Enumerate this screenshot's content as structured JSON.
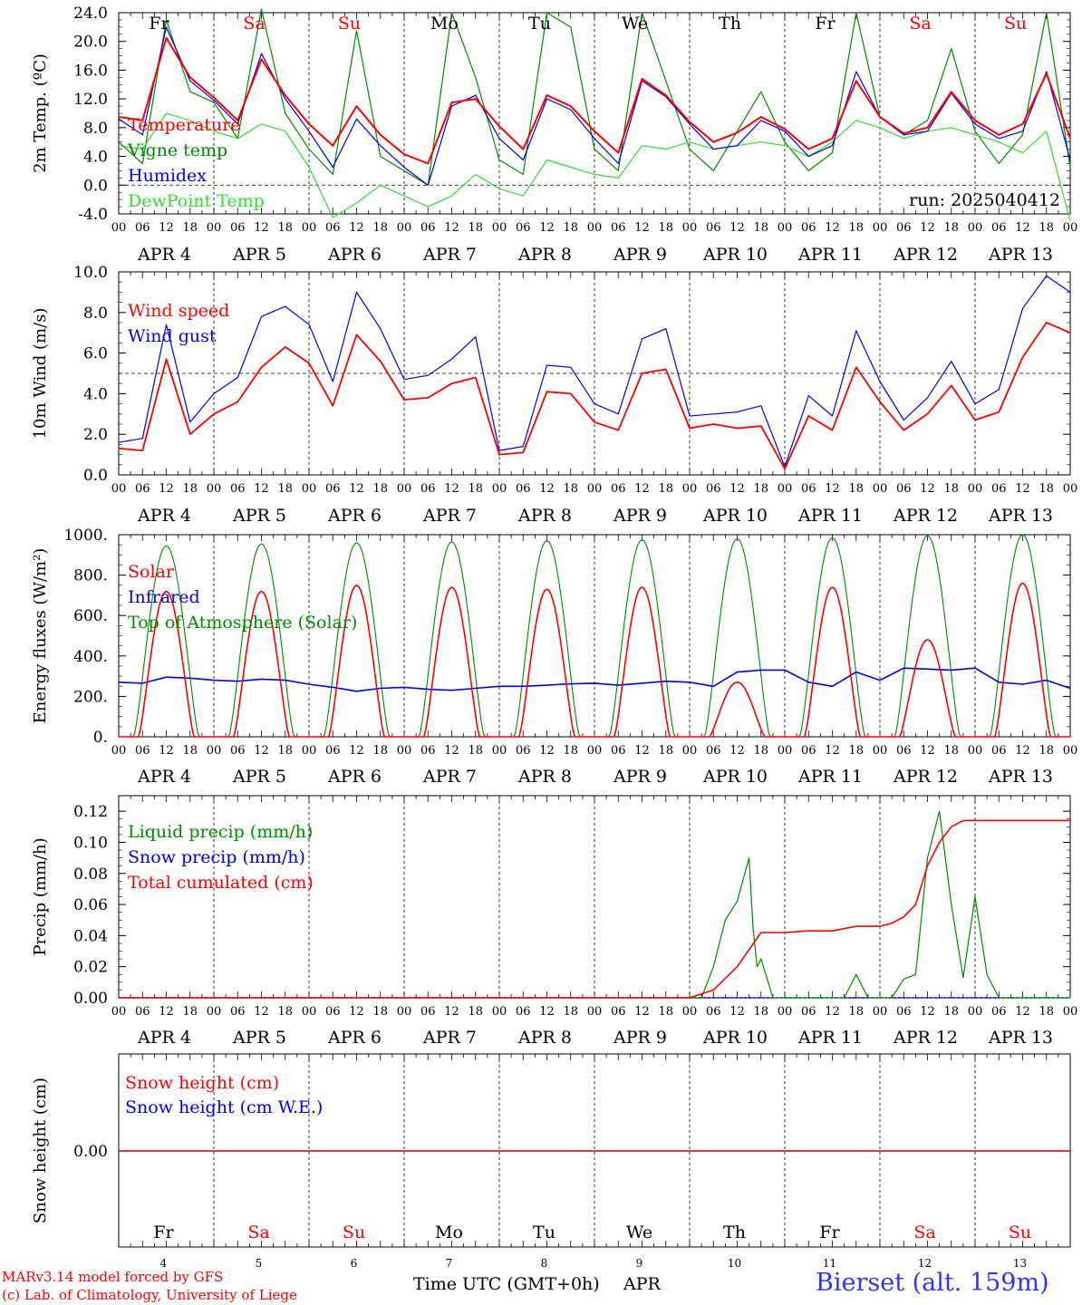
{
  "colors": {
    "red": "#ff0000",
    "green": "#008a00",
    "lightgreen": "#33dd33",
    "blue": "#0000ee",
    "station": "#3333ff",
    "weekday": "#000000",
    "weekend": "#ff0000"
  },
  "days": [
    {
      "date": "4",
      "weekday": "Fr",
      "weekend": false
    },
    {
      "date": "5",
      "weekday": "Sa",
      "weekend": true
    },
    {
      "date": "6",
      "weekday": "Su",
      "weekend": true
    },
    {
      "date": "7",
      "weekday": "Mo",
      "weekend": false
    },
    {
      "date": "8",
      "weekday": "Tu",
      "weekend": false
    },
    {
      "date": "9",
      "weekday": "We",
      "weekend": false
    },
    {
      "date": "10",
      "weekday": "Th",
      "weekend": false
    },
    {
      "date": "11",
      "weekday": "Fr",
      "weekend": false
    },
    {
      "date": "12",
      "weekday": "Sa",
      "weekend": true
    },
    {
      "date": "13",
      "weekday": "Su",
      "weekend": true
    }
  ],
  "month": "APR",
  "hour_labels": [
    "00",
    "06",
    "12",
    "18"
  ],
  "end_hour_label": "00",
  "footer": {
    "model": "MARv3.14 model forced by GFS",
    "credit": "(c) Lab. of Climatology, University of Liege",
    "time_label": "Time UTC (GMT+0h)",
    "month_label": "APR",
    "station": "Bierset (alt. 159m)"
  },
  "chart_data": [
    {
      "type": "line",
      "id": "temp",
      "ylabel": "2m Temp. (ºC)",
      "ylim": [
        -4.0,
        24.0
      ],
      "yticks": [
        "-4.0",
        "0.0",
        "4.0",
        "8.0",
        "12.0",
        "16.0",
        "20.0",
        "24.0"
      ],
      "ref_line": 0,
      "annotation": "run: 2025040412",
      "x_hours": [
        0,
        6,
        12,
        18,
        24,
        30,
        36,
        42,
        48,
        54,
        60,
        66,
        72,
        78,
        84,
        90,
        96,
        102,
        108,
        114,
        120,
        126,
        132,
        138,
        144,
        150,
        156,
        162,
        168,
        174,
        180,
        186,
        192,
        198,
        204,
        210,
        216,
        222,
        228,
        234,
        240
      ],
      "series": [
        {
          "name": "Temperature",
          "color": "#ff0000",
          "values": [
            9.5,
            9.0,
            20.5,
            15.0,
            12.2,
            9.0,
            17.5,
            12.5,
            8.5,
            5.5,
            11.0,
            7.0,
            4.3,
            3.0,
            11.5,
            12.0,
            8.2,
            5.0,
            12.5,
            11.0,
            7.5,
            4.5,
            14.8,
            12.5,
            8.8,
            6.0,
            7.3,
            9.5,
            7.8,
            5.0,
            6.5,
            14.5,
            9.5,
            7.2,
            8.0,
            13.0,
            9.0,
            7.0,
            8.5,
            15.5,
            6.5
          ]
        },
        {
          "name": "Vigne temp",
          "color": "#008a00",
          "values": [
            6.0,
            3.0,
            23.0,
            13.0,
            11.5,
            6.5,
            24.5,
            10.0,
            5.0,
            1.5,
            21.5,
            4.0,
            2.0,
            0.0,
            24.0,
            15.0,
            3.5,
            1.5,
            24.0,
            22.0,
            5.0,
            2.0,
            24.0,
            14.5,
            5.0,
            2.0,
            7.5,
            13.0,
            6.0,
            2.0,
            4.5,
            24.0,
            9.5,
            7.0,
            9.0,
            19.0,
            7.5,
            3.0,
            7.0,
            24.0,
            2.5
          ]
        },
        {
          "name": "Humidex",
          "color": "#0000ee",
          "values": [
            9.2,
            7.0,
            22.0,
            14.5,
            11.8,
            8.5,
            18.3,
            12.0,
            7.5,
            2.5,
            9.2,
            5.5,
            2.5,
            0.0,
            11.0,
            12.5,
            6.5,
            3.5,
            12.0,
            10.5,
            6.5,
            3.0,
            14.5,
            12.3,
            8.5,
            5.0,
            5.5,
            9.0,
            7.5,
            4.0,
            5.5,
            15.8,
            9.5,
            7.0,
            7.5,
            12.8,
            8.5,
            6.5,
            7.5,
            15.8,
            3.5
          ]
        },
        {
          "name": "DewPoint Temp",
          "color": "#33dd33",
          "values": [
            5.5,
            5.0,
            10.0,
            9.0,
            7.5,
            6.5,
            8.5,
            7.5,
            2.5,
            -4.5,
            -2.5,
            0.0,
            -1.5,
            -3.0,
            -1.5,
            1.5,
            -0.5,
            -1.5,
            3.5,
            2.5,
            1.5,
            1.0,
            5.5,
            5.0,
            6.0,
            5.0,
            5.5,
            6.0,
            5.5,
            4.0,
            6.0,
            9.0,
            8.0,
            6.5,
            7.5,
            8.0,
            7.0,
            6.0,
            4.5,
            7.5,
            -5.0
          ]
        }
      ]
    },
    {
      "type": "line",
      "id": "wind",
      "ylabel": "10m Wind (m/s)",
      "ylim": [
        0,
        10
      ],
      "yticks": [
        "0.0",
        "2.0",
        "4.0",
        "6.0",
        "8.0",
        "10.0"
      ],
      "ref_line": 5,
      "x_hours": [
        0,
        6,
        12,
        18,
        24,
        30,
        36,
        42,
        48,
        54,
        60,
        66,
        72,
        78,
        84,
        90,
        96,
        102,
        108,
        114,
        120,
        126,
        132,
        138,
        144,
        150,
        156,
        162,
        168,
        174,
        180,
        186,
        192,
        198,
        204,
        210,
        216,
        222,
        228,
        234,
        240
      ],
      "series": [
        {
          "name": "Wind speed",
          "color": "#ff0000",
          "values": [
            1.3,
            1.2,
            5.7,
            2.0,
            3.0,
            3.6,
            5.3,
            6.3,
            5.5,
            3.4,
            6.9,
            5.6,
            3.7,
            3.8,
            4.5,
            4.8,
            1.0,
            1.1,
            4.1,
            4.0,
            2.6,
            2.2,
            5.0,
            5.2,
            2.3,
            2.5,
            2.3,
            2.4,
            0.3,
            2.9,
            2.2,
            5.3,
            3.6,
            2.2,
            3.0,
            4.4,
            2.7,
            3.1,
            5.8,
            7.5,
            7.0
          ]
        },
        {
          "name": "Wind gust",
          "color": "#0000ee",
          "values": [
            1.6,
            1.8,
            7.4,
            2.6,
            4.0,
            4.8,
            7.8,
            8.3,
            7.4,
            4.6,
            9.0,
            7.2,
            4.7,
            4.9,
            5.7,
            6.8,
            1.2,
            1.4,
            5.4,
            5.3,
            3.5,
            3.0,
            6.7,
            7.2,
            2.9,
            3.0,
            3.1,
            3.4,
            0.4,
            3.9,
            2.9,
            7.1,
            4.6,
            2.7,
            3.8,
            5.6,
            3.5,
            4.2,
            8.2,
            9.8,
            9.0
          ]
        }
      ]
    },
    {
      "type": "line",
      "id": "energy",
      "ylabel": "Energy fluxes (W/m²)",
      "ylim": [
        0,
        1000
      ],
      "yticks": [
        "0.",
        "200.",
        "400.",
        "600.",
        "800.",
        "1000."
      ],
      "series": [
        {
          "name": "Solar",
          "color": "#ff0000",
          "daily_peaks": [
            720,
            720,
            750,
            740,
            730,
            740,
            270,
            740,
            480,
            760
          ],
          "note": "daytime bell shape from ~05h to ~19h UTC"
        },
        {
          "name": "Infrared",
          "color": "#0000ee",
          "x_hours": [
            0,
            6,
            12,
            18,
            24,
            30,
            36,
            42,
            48,
            54,
            60,
            66,
            72,
            78,
            84,
            90,
            96,
            102,
            108,
            114,
            120,
            126,
            132,
            138,
            144,
            150,
            156,
            162,
            168,
            174,
            180,
            186,
            192,
            198,
            204,
            210,
            216,
            222,
            228,
            234,
            240
          ],
          "values": [
            270,
            265,
            295,
            290,
            280,
            275,
            285,
            280,
            260,
            245,
            225,
            240,
            245,
            235,
            230,
            240,
            250,
            250,
            255,
            262,
            265,
            255,
            265,
            275,
            270,
            250,
            320,
            330,
            330,
            270,
            250,
            320,
            280,
            340,
            335,
            330,
            340,
            270,
            260,
            280,
            240
          ]
        },
        {
          "name": "Top of Atmosphere (Solar)",
          "color": "#008a00",
          "daily_peaks": [
            945,
            955,
            960,
            965,
            970,
            975,
            980,
            985,
            995,
            1000
          ],
          "note": "daytime bell shape from ~04h to ~20h UTC"
        }
      ]
    },
    {
      "type": "line",
      "id": "precip",
      "ylabel": "Precip (mm/h)",
      "ylim": [
        0,
        0.13
      ],
      "yticks": [
        "0.00",
        "0.02",
        "0.04",
        "0.06",
        "0.08",
        "0.10",
        "0.12"
      ],
      "series": [
        {
          "name": "Liquid precip (mm/h)",
          "color": "#008a00",
          "x_hours": [
            0,
            144,
            147,
            150,
            153,
            156,
            159,
            160,
            161,
            162,
            165,
            171,
            174,
            180,
            183,
            186,
            189,
            192,
            195,
            198,
            201,
            204,
            207,
            210,
            213,
            216,
            219,
            222,
            240
          ],
          "values": [
            0,
            0,
            0.0,
            0.02,
            0.05,
            0.062,
            0.09,
            0.045,
            0.02,
            0.025,
            0.0,
            0.0,
            0.0,
            0.0,
            0.0,
            0.015,
            0.0,
            0.0,
            0.0,
            0.012,
            0.015,
            0.09,
            0.12,
            0.06,
            0.013,
            0.065,
            0.015,
            0.0,
            0.0
          ]
        },
        {
          "name": "Snow precip (mm/h)",
          "color": "#0000ee",
          "x_hours": [
            0,
            240
          ],
          "values": [
            0,
            0
          ]
        },
        {
          "name": "Total cumulated (cm)",
          "color": "#ff0000",
          "x_hours": [
            0,
            144,
            150,
            156,
            162,
            168,
            174,
            180,
            186,
            192,
            195,
            198,
            201,
            204,
            207,
            210,
            213,
            216,
            240
          ],
          "values": [
            0,
            0,
            0.005,
            0.02,
            0.042,
            0.042,
            0.043,
            0.043,
            0.046,
            0.046,
            0.048,
            0.052,
            0.06,
            0.085,
            0.1,
            0.11,
            0.114,
            0.114,
            0.114
          ]
        }
      ]
    },
    {
      "type": "line",
      "id": "snow",
      "ylabel": "Snow height (cm)",
      "yticks": [
        "0.00"
      ],
      "series": [
        {
          "name": "Snow height (cm)",
          "color": "#ff0000",
          "x_hours": [
            0,
            240
          ],
          "values": [
            0,
            0
          ]
        },
        {
          "name": "Snow height (cm W.E.)",
          "color": "#0000ee",
          "x_hours": [
            0,
            240
          ],
          "values": [
            0,
            0
          ]
        }
      ]
    }
  ]
}
